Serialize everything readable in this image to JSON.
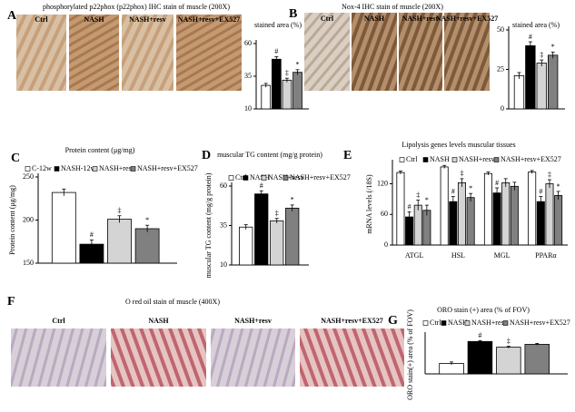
{
  "image_panels": [
    {
      "letter": "A",
      "title": "phosphorylated p22phox (p22phox)  IHC stain of muscle (200X)",
      "labels": [
        "Ctrl",
        "NASH",
        "NASH+resv",
        "NASH+resv+EX527"
      ]
    },
    {
      "letter": "B",
      "title": "Nox-4  IHC stain of muscle (200X)",
      "labels": [
        "Ctrl",
        "NASH",
        "NASH+resv",
        "NASH+resv+EX527"
      ]
    },
    {
      "letter": "F",
      "title": "O red oil stain of muscle (400X)",
      "labels": [
        "Ctrl",
        "NASH",
        "NASH+resv",
        "NASH+resv+EX527"
      ]
    }
  ],
  "chart_data": [
    {
      "type": "bar",
      "title": "stained area (%)",
      "values": [
        28,
        48,
        32,
        38
      ],
      "errors": [
        1.5,
        2,
        1.5,
        2
      ],
      "annotations": [
        null,
        "#",
        "‡",
        "*"
      ],
      "colors": [
        "#ffffff",
        "#000000",
        "#d4d4d4",
        "#808080"
      ],
      "ylim": [
        10,
        60
      ],
      "yticks": [
        10,
        35,
        60
      ]
    },
    {
      "type": "bar",
      "title": "stained area (%)",
      "values": [
        21,
        40,
        29,
        34
      ],
      "errors": [
        2,
        2.5,
        2,
        2
      ],
      "annotations": [
        null,
        "#",
        "‡",
        "*"
      ],
      "colors": [
        "#ffffff",
        "#000000",
        "#d4d4d4",
        "#808080"
      ],
      "ylim": [
        0,
        50
      ],
      "yticks": [
        0,
        25,
        50
      ]
    },
    {
      "type": "bar",
      "letter": "C",
      "title": "Protein content (μg/mg)",
      "y_label": "Protein content (μg/mg)",
      "legend": true,
      "series": [
        {
          "name": "C-12w",
          "color": "#ffffff",
          "values": [
            232
          ],
          "errors": [
            4
          ],
          "annotations": [
            null
          ]
        },
        {
          "name": "NASH-12w",
          "color": "#000000",
          "values": [
            172
          ],
          "errors": [
            5
          ],
          "annotations": [
            "#"
          ]
        },
        {
          "name": "NASH+resv",
          "color": "#d4d4d4",
          "values": [
            201
          ],
          "errors": [
            4
          ],
          "annotations": [
            "‡"
          ]
        },
        {
          "name": "NASH+resv+EX527",
          "color": "#808080",
          "values": [
            190
          ],
          "errors": [
            4
          ],
          "annotations": [
            "*"
          ]
        }
      ],
      "ylim": [
        150,
        250
      ],
      "yticks": [
        150,
        200,
        250
      ]
    },
    {
      "type": "bar",
      "letter": "D",
      "title": "muscular TG content (mg/g protein)",
      "y_label": "muscular TG content (mg/g protein)",
      "legend": true,
      "series": [
        {
          "name": "Ctrl",
          "color": "#ffffff",
          "values": [
            34
          ],
          "errors": [
            1.5
          ],
          "annotations": [
            null
          ]
        },
        {
          "name": "NASH",
          "color": "#000000",
          "values": [
            55
          ],
          "errors": [
            2
          ],
          "annotations": [
            "#"
          ]
        },
        {
          "name": "NASH+resv",
          "color": "#d4d4d4",
          "values": [
            38
          ],
          "errors": [
            1.5
          ],
          "annotations": [
            "‡"
          ]
        },
        {
          "name": "NASH+resv+EX527",
          "color": "#808080",
          "values": [
            46
          ],
          "errors": [
            2
          ],
          "annotations": [
            "*"
          ]
        }
      ],
      "ylim": [
        10,
        60
      ],
      "yticks": [
        10,
        35,
        60
      ]
    },
    {
      "type": "bar",
      "letter": "E",
      "title": "Lipolysis genes levels muscular tissues",
      "y_label": "mRNA levels (/18S)",
      "legend": true,
      "categories": [
        "ATGL",
        "HSL",
        "MGL",
        "PPARα"
      ],
      "series": [
        {
          "name": "Ctrl",
          "color": "#ffffff",
          "values": [
            142,
            153,
            140,
            143
          ],
          "errors": [
            3,
            3,
            3,
            3
          ],
          "annotations": [
            null,
            null,
            null,
            null
          ]
        },
        {
          "name": "NASH",
          "color": "#000000",
          "values": [
            55,
            85,
            102,
            85
          ],
          "errors": [
            10,
            10,
            10,
            10
          ],
          "annotations": [
            "#",
            "#",
            "#",
            "#"
          ]
        },
        {
          "name": "NASH+resv",
          "color": "#d4d4d4",
          "values": [
            78,
            122,
            122,
            120
          ],
          "errors": [
            10,
            8,
            8,
            8
          ],
          "annotations": [
            "‡",
            "‡",
            null,
            "‡"
          ]
        },
        {
          "name": "NASH+resv+EX527",
          "color": "#808080",
          "values": [
            68,
            93,
            115,
            97
          ],
          "errors": [
            10,
            8,
            8,
            8
          ],
          "annotations": [
            "*",
            "*",
            null,
            "*"
          ]
        }
      ],
      "ylim": [
        0,
        160
      ],
      "yticks": [
        0,
        60,
        120
      ]
    },
    {
      "type": "bar",
      "letter": "G",
      "title": "ORO stain (+) area (% of FOV)",
      "y_label": "ORO stain(+) area (% of FOV)",
      "legend": true,
      "series": [
        {
          "name": "Ctrl",
          "color": "#ffffff",
          "values": [
            11
          ],
          "errors": [
            1.5
          ],
          "annotations": [
            null
          ]
        },
        {
          "name": "NASH",
          "color": "#000000",
          "values": [
            34
          ],
          "errors": [
            1
          ],
          "annotations": [
            "#"
          ]
        },
        {
          "name": "NASH+resv",
          "color": "#d4d4d4",
          "values": [
            28
          ],
          "errors": [
            1
          ],
          "annotations": [
            "‡"
          ]
        },
        {
          "name": "NASH+resv+EX527",
          "color": "#808080",
          "values": [
            31
          ],
          "errors": [
            1
          ],
          "annotations": [
            null
          ]
        }
      ],
      "ylim": [
        0,
        40
      ]
    }
  ]
}
